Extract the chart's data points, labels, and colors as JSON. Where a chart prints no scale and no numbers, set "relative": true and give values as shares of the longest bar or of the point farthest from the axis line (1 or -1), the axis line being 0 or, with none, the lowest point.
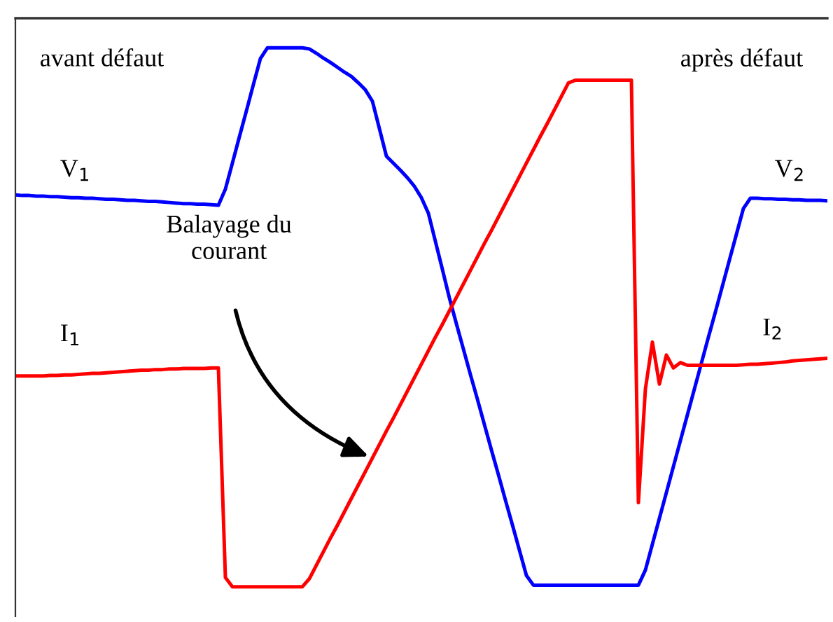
{
  "chart_data": {
    "type": "line",
    "relative": true,
    "legend": false,
    "marker": "none",
    "line_style": "solid",
    "categories": [
      null,
      null,
      null,
      null,
      null,
      null,
      null,
      null,
      null,
      null,
      null,
      null,
      null,
      null,
      null,
      null,
      null,
      null,
      null,
      null,
      null,
      null,
      null,
      null,
      null,
      null,
      null,
      null,
      null,
      null,
      null,
      null,
      null,
      null,
      null,
      null,
      null,
      null,
      null,
      null,
      null,
      null,
      null,
      null,
      null,
      null,
      null,
      null,
      null,
      null,
      null,
      null,
      null,
      null,
      null,
      null,
      null,
      null,
      null,
      null,
      null,
      null,
      null,
      null,
      null,
      null,
      null,
      null,
      null,
      null,
      null,
      null,
      null,
      null,
      null,
      null,
      null,
      null,
      null,
      null,
      null,
      null,
      null,
      null,
      null,
      null,
      null,
      null,
      null,
      null,
      null,
      null,
      null,
      null,
      null,
      null,
      null,
      null,
      null,
      null,
      null,
      null,
      null,
      null,
      null,
      null,
      null,
      null,
      null,
      null,
      null,
      null,
      null,
      null,
      null,
      null,
      null
    ],
    "series": [
      {
        "color": "#0000ff",
        "values": [
          0.727,
          0.726,
          0.726,
          0.725,
          0.725,
          0.724,
          0.724,
          0.723,
          0.722,
          0.722,
          0.721,
          0.721,
          0.72,
          0.719,
          0.719,
          0.718,
          0.717,
          0.717,
          0.716,
          0.715,
          0.715,
          0.714,
          0.713,
          0.712,
          0.711,
          0.711,
          0.71,
          0.71,
          0.709,
          0.708,
          0.738,
          0.786,
          0.835,
          0.883,
          0.932,
          0.98,
          1.0,
          1.0,
          1.0,
          1.0,
          1.0,
          1.0,
          0.998,
          0.99,
          0.981,
          0.973,
          0.964,
          0.955,
          0.947,
          0.935,
          0.922,
          0.901,
          0.85,
          0.799,
          0.786,
          0.773,
          0.759,
          0.743,
          0.722,
          0.693,
          0.641,
          0.589,
          0.536,
          0.488,
          0.441,
          0.394,
          0.348,
          0.301,
          0.254,
          0.208,
          0.161,
          0.115,
          0.068,
          0.021,
          0.003,
          0.003,
          0.003,
          0.003,
          0.003,
          0.003,
          0.003,
          0.003,
          0.003,
          0.003,
          0.003,
          0.003,
          0.003,
          0.003,
          0.003,
          0.003,
          0.031,
          0.079,
          0.127,
          0.175,
          0.223,
          0.271,
          0.319,
          0.367,
          0.415,
          0.463,
          0.51,
          0.558,
          0.606,
          0.654,
          0.702,
          0.721,
          0.721,
          0.72,
          0.72,
          0.719,
          0.719,
          0.718,
          0.718,
          0.717,
          0.717,
          0.717,
          0.716
        ]
      },
      {
        "color": "#ff0000",
        "values": [
          0.391,
          0.391,
          0.391,
          0.391,
          0.391,
          0.392,
          0.392,
          0.393,
          0.393,
          0.394,
          0.395,
          0.396,
          0.396,
          0.397,
          0.398,
          0.399,
          0.4,
          0.401,
          0.402,
          0.402,
          0.403,
          0.403,
          0.404,
          0.404,
          0.405,
          0.405,
          0.405,
          0.405,
          0.406,
          0.406,
          0.017,
          0,
          0,
          0,
          0,
          0,
          0,
          0,
          0,
          0,
          0,
          0,
          0.015,
          0.04,
          0.065,
          0.09,
          0.114,
          0.139,
          0.164,
          0.189,
          0.214,
          0.239,
          0.264,
          0.289,
          0.313,
          0.338,
          0.363,
          0.388,
          0.413,
          0.438,
          0.463,
          0.487,
          0.512,
          0.537,
          0.562,
          0.587,
          0.612,
          0.637,
          0.661,
          0.686,
          0.711,
          0.736,
          0.761,
          0.786,
          0.811,
          0.836,
          0.86,
          0.885,
          0.91,
          0.935,
          0.94,
          0.94,
          0.94,
          0.94,
          0.94,
          0.94,
          0.94,
          0.94,
          0.94,
          0.156,
          0.367,
          0.454,
          0.376,
          0.43,
          0.406,
          0.416,
          0.411,
          0.411,
          0.411,
          0.411,
          0.411,
          0.411,
          0.411,
          0.411,
          0.412,
          0.413,
          0.413,
          0.414,
          0.415,
          0.416,
          0.417,
          0.419,
          0.42,
          0.421,
          0.422,
          0.423,
          0.424
        ]
      }
    ],
    "annotations": [
      "avant défaut",
      "après défaut",
      "V$_{1}$",
      "V$_{2}$",
      "I$_{1}$",
      "I$_{2}$",
      "Balayage du\ncourant"
    ]
  }
}
